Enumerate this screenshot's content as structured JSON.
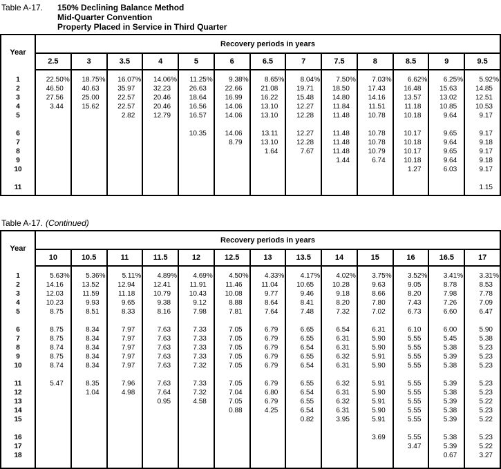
{
  "document": {
    "table1": {
      "label": "Table A-17.",
      "title_lines": [
        "150% Declining Balance Method",
        "Mid-Quarter Convention",
        "Property Placed in Service in Third Quarter"
      ],
      "year_header": "Year",
      "group_header": "Recovery periods in years",
      "columns": [
        "2.5",
        "3",
        "3.5",
        "4",
        "5",
        "6",
        "6.5",
        "7",
        "7.5",
        "8",
        "8.5",
        "9",
        "9.5"
      ],
      "rows": [
        {
          "year": "1",
          "values": [
            "22.50%",
            "18.75%",
            "16.07%",
            "14.06%",
            "11.25%",
            "9.38%",
            "8.65%",
            "8.04%",
            "7.50%",
            "7.03%",
            "6.62%",
            "6.25%",
            "5.92%"
          ]
        },
        {
          "year": "2",
          "values": [
            "46.50",
            "40.63",
            "35.97",
            "32.23",
            "26.63",
            "22.66",
            "21.08",
            "19.71",
            "18.50",
            "17.43",
            "16.48",
            "15.63",
            "14.85"
          ]
        },
        {
          "year": "3",
          "values": [
            "27.56",
            "25.00",
            "22.57",
            "20.46",
            "18.64",
            "16.99",
            "16.22",
            "15.48",
            "14.80",
            "14.16",
            "13.57",
            "13.02",
            "12.51"
          ]
        },
        {
          "year": "4",
          "values": [
            "3.44",
            "15.62",
            "22.57",
            "20.46",
            "16.56",
            "14.06",
            "13.10",
            "12.27",
            "11.84",
            "11.51",
            "11.18",
            "10.85",
            "10.53"
          ]
        },
        {
          "year": "5",
          "values": [
            "",
            "",
            "2.82",
            "12.79",
            "16.57",
            "14.06",
            "13.10",
            "12.28",
            "11.48",
            "10.78",
            "10.18",
            "9.64",
            "9.17"
          ]
        },
        {
          "gap": true
        },
        {
          "year": "6",
          "values": [
            "",
            "",
            "",
            "",
            "10.35",
            "14.06",
            "13.11",
            "12.27",
            "11.48",
            "10.78",
            "10.17",
            "9.65",
            "9.17"
          ]
        },
        {
          "year": "7",
          "values": [
            "",
            "",
            "",
            "",
            "",
            "8.79",
            "13.10",
            "12.28",
            "11.48",
            "10.78",
            "10.18",
            "9.64",
            "9.18"
          ]
        },
        {
          "year": "8",
          "values": [
            "",
            "",
            "",
            "",
            "",
            "",
            "1.64",
            "7.67",
            "11.48",
            "10.79",
            "10.17",
            "9.65",
            "9.17"
          ]
        },
        {
          "year": "9",
          "values": [
            "",
            "",
            "",
            "",
            "",
            "",
            "",
            "",
            "1.44",
            "6.74",
            "10.18",
            "9.64",
            "9.18"
          ]
        },
        {
          "year": "10",
          "values": [
            "",
            "",
            "",
            "",
            "",
            "",
            "",
            "",
            "",
            "",
            "1.27",
            "6.03",
            "9.17"
          ]
        },
        {
          "gap": true
        },
        {
          "year": "11",
          "values": [
            "",
            "",
            "",
            "",
            "",
            "",
            "",
            "",
            "",
            "",
            "",
            "",
            "1.15"
          ]
        }
      ]
    },
    "table2": {
      "label": "Table A-17.",
      "continued": "(Continued)",
      "year_header": "Year",
      "group_header": "Recovery periods in years",
      "columns": [
        "10",
        "10.5",
        "11",
        "11.5",
        "12",
        "12.5",
        "13",
        "13.5",
        "14",
        "15",
        "16",
        "16.5",
        "17"
      ],
      "rows": [
        {
          "year": "1",
          "values": [
            "5.63%",
            "5.36%",
            "5.11%",
            "4.89%",
            "4.69%",
            "4.50%",
            "4.33%",
            "4.17%",
            "4.02%",
            "3.75%",
            "3.52%",
            "3.41%",
            "3.31%"
          ]
        },
        {
          "year": "2",
          "values": [
            "14.16",
            "13.52",
            "12.94",
            "12.41",
            "11.91",
            "11.46",
            "11.04",
            "10.65",
            "10.28",
            "9.63",
            "9.05",
            "8.78",
            "8.53"
          ]
        },
        {
          "year": "3",
          "values": [
            "12.03",
            "11.59",
            "11.18",
            "10.79",
            "10.43",
            "10.08",
            "9.77",
            "9.46",
            "9.18",
            "8.66",
            "8.20",
            "7.98",
            "7.78"
          ]
        },
        {
          "year": "4",
          "values": [
            "10.23",
            "9.93",
            "9.65",
            "9.38",
            "9.12",
            "8.88",
            "8.64",
            "8.41",
            "8.20",
            "7.80",
            "7.43",
            "7.26",
            "7.09"
          ]
        },
        {
          "year": "5",
          "values": [
            "8.75",
            "8.51",
            "8.33",
            "8.16",
            "7.98",
            "7.81",
            "7.64",
            "7.48",
            "7.32",
            "7.02",
            "6.73",
            "6.60",
            "6.47"
          ]
        },
        {
          "gap": true
        },
        {
          "year": "6",
          "values": [
            "8.75",
            "8.34",
            "7.97",
            "7.63",
            "7.33",
            "7.05",
            "6.79",
            "6.65",
            "6.54",
            "6.31",
            "6.10",
            "6.00",
            "5.90"
          ]
        },
        {
          "year": "7",
          "values": [
            "8.75",
            "8.34",
            "7.97",
            "7.63",
            "7.33",
            "7.05",
            "6.79",
            "6.55",
            "6.31",
            "5.90",
            "5.55",
            "5.45",
            "5.38"
          ]
        },
        {
          "year": "8",
          "values": [
            "8.74",
            "8.34",
            "7.97",
            "7.63",
            "7.33",
            "7.05",
            "6.79",
            "6.54",
            "6.31",
            "5.90",
            "5.55",
            "5.38",
            "5.23"
          ]
        },
        {
          "year": "9",
          "values": [
            "8.75",
            "8.34",
            "7.97",
            "7.63",
            "7.33",
            "7.05",
            "6.79",
            "6.55",
            "6.32",
            "5.91",
            "5.55",
            "5.39",
            "5.23"
          ]
        },
        {
          "year": "10",
          "values": [
            "8.74",
            "8.34",
            "7.97",
            "7.63",
            "7.32",
            "7.05",
            "6.79",
            "6.54",
            "6.31",
            "5.90",
            "5.55",
            "5.38",
            "5.23"
          ]
        },
        {
          "gap": true
        },
        {
          "year": "11",
          "values": [
            "5.47",
            "8.35",
            "7.96",
            "7.63",
            "7.33",
            "7.05",
            "6.79",
            "6.55",
            "6.32",
            "5.91",
            "5.55",
            "5.39",
            "5.23"
          ]
        },
        {
          "year": "12",
          "values": [
            "",
            "1.04",
            "4.98",
            "7.64",
            "7.32",
            "7.04",
            "6.80",
            "6.54",
            "6.31",
            "5.90",
            "5.55",
            "5.38",
            "5.23"
          ]
        },
        {
          "year": "13",
          "values": [
            "",
            "",
            "",
            "0.95",
            "4.58",
            "7.05",
            "6.79",
            "6.55",
            "6.32",
            "5.91",
            "5.55",
            "5.39",
            "5.22"
          ]
        },
        {
          "year": "14",
          "values": [
            "",
            "",
            "",
            "",
            "",
            "0.88",
            "4.25",
            "6.54",
            "6.31",
            "5.90",
            "5.55",
            "5.38",
            "5.23"
          ]
        },
        {
          "year": "15",
          "values": [
            "",
            "",
            "",
            "",
            "",
            "",
            "",
            "0.82",
            "3.95",
            "5.91",
            "5.55",
            "5.39",
            "5.22"
          ]
        },
        {
          "gap": true
        },
        {
          "year": "16",
          "values": [
            "",
            "",
            "",
            "",
            "",
            "",
            "",
            "",
            "",
            "3.69",
            "5.55",
            "5.38",
            "5.23"
          ]
        },
        {
          "year": "17",
          "values": [
            "",
            "",
            "",
            "",
            "",
            "",
            "",
            "",
            "",
            "",
            "3.47",
            "5.39",
            "5.22"
          ]
        },
        {
          "year": "18",
          "values": [
            "",
            "",
            "",
            "",
            "",
            "",
            "",
            "",
            "",
            "",
            "",
            "0.67",
            "3.27"
          ]
        }
      ]
    }
  }
}
